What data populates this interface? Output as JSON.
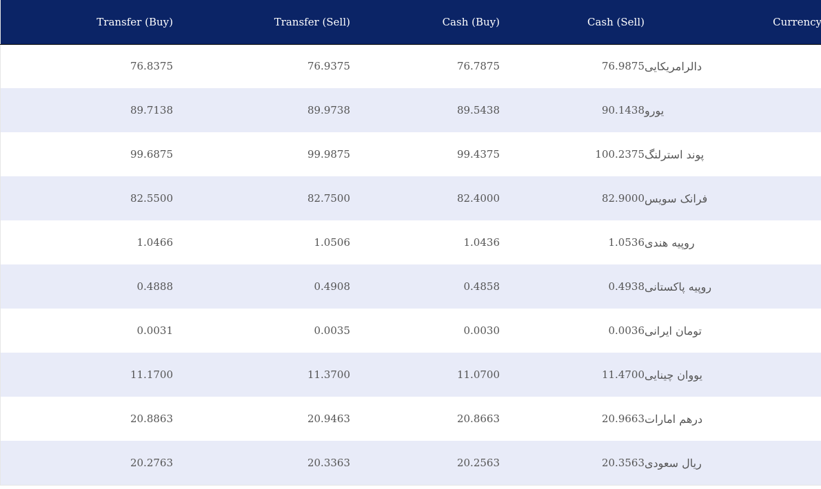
{
  "table": {
    "headers": {
      "transfer_buy": "Transfer (Buy)",
      "transfer_sell": "Transfer (Sell)",
      "cash_buy": "Cash (Buy)",
      "cash_sell": "Cash (Sell)",
      "currency": "Currency"
    },
    "rows": [
      {
        "transfer_buy": "76.8375",
        "transfer_sell": "76.9375",
        "cash_buy": "76.7875",
        "cash_sell": "76.9875",
        "currency": "دالرامریکایی"
      },
      {
        "transfer_buy": "89.7138",
        "transfer_sell": "89.9738",
        "cash_buy": "89.5438",
        "cash_sell": "90.1438",
        "currency": "یورو"
      },
      {
        "transfer_buy": "99.6875",
        "transfer_sell": "99.9875",
        "cash_buy": "99.4375",
        "cash_sell": "100.2375",
        "currency": "پوند استرلنگ"
      },
      {
        "transfer_buy": "82.5500",
        "transfer_sell": "82.7500",
        "cash_buy": "82.4000",
        "cash_sell": "82.9000",
        "currency": "فرانک سویس"
      },
      {
        "transfer_buy": "1.0466",
        "transfer_sell": "1.0506",
        "cash_buy": "1.0436",
        "cash_sell": "1.0536",
        "currency": "روپیه هندی"
      },
      {
        "transfer_buy": "0.4888",
        "transfer_sell": "0.4908",
        "cash_buy": "0.4858",
        "cash_sell": "0.4938",
        "currency": "روپیه پاکستانی"
      },
      {
        "transfer_buy": "0.0031",
        "transfer_sell": "0.0035",
        "cash_buy": "0.0030",
        "cash_sell": "0.0036",
        "currency": "تومان ایرانی"
      },
      {
        "transfer_buy": "11.1700",
        "transfer_sell": "11.3700",
        "cash_buy": "11.0700",
        "cash_sell": "11.4700",
        "currency": "یووان چینایی"
      },
      {
        "transfer_buy": "20.8863",
        "transfer_sell": "20.9463",
        "cash_buy": "20.8663",
        "cash_sell": "20.9663",
        "currency": "درهم امارات"
      },
      {
        "transfer_buy": "20.2763",
        "transfer_sell": "20.3363",
        "cash_buy": "20.2563",
        "cash_sell": "20.3563",
        "currency": "ریال سعودی"
      }
    ]
  },
  "colors": {
    "header_background": "#0b2466",
    "header_text": "#ffffff",
    "row_alt_background": "#e8ebf8",
    "cell_text": "#555555"
  }
}
